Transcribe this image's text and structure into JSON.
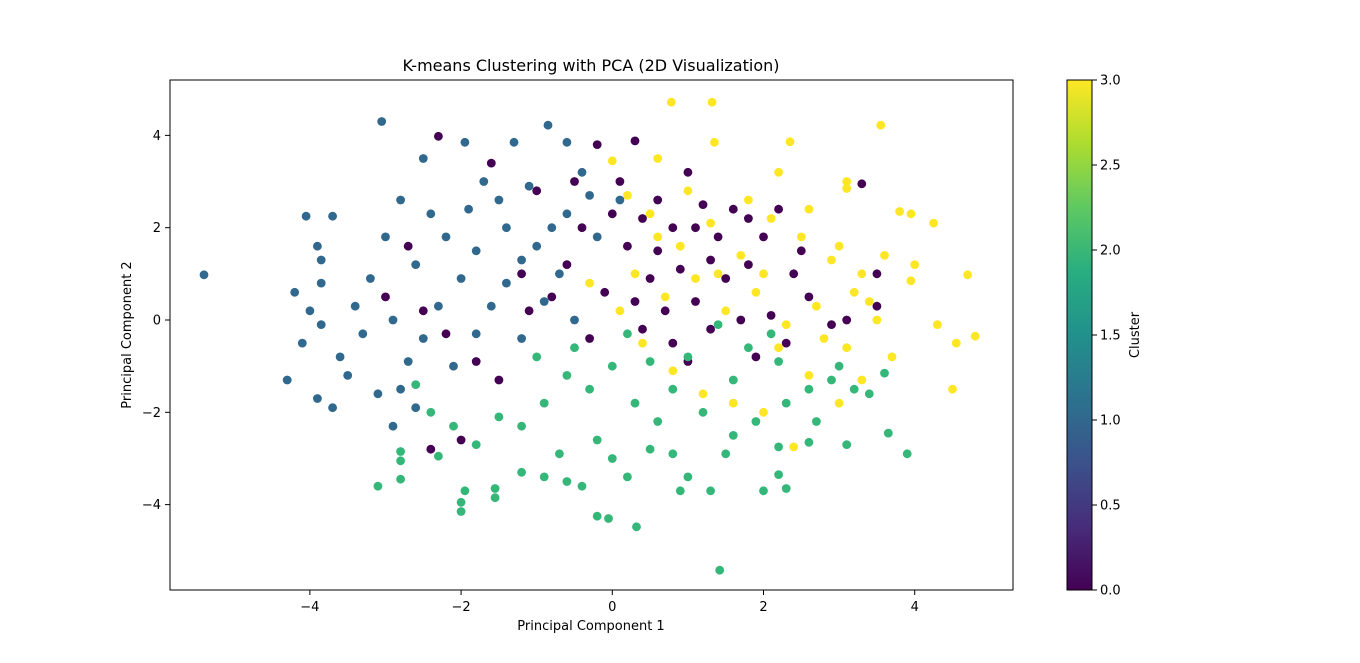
{
  "chart_data": {
    "type": "scatter",
    "title": "K-means Clustering with PCA (2D Visualization)",
    "xlabel": "Principal Component 1",
    "ylabel": "Principal Component 2",
    "xlim": [
      -5.85,
      5.3
    ],
    "ylim": [
      -5.85,
      5.2
    ],
    "xticks": [
      -4,
      -2,
      0,
      2,
      4
    ],
    "yticks": [
      -4,
      -2,
      0,
      2,
      4
    ],
    "xtick_labels": [
      "−4",
      "−2",
      "0",
      "2",
      "4"
    ],
    "ytick_labels": [
      "−4",
      "−2",
      "0",
      "2",
      "4"
    ],
    "grid": false,
    "colorbar": {
      "label": "Cluster",
      "range": [
        0.0,
        3.0
      ],
      "ticks": [
        0.0,
        0.5,
        1.0,
        1.5,
        2.0,
        2.5,
        3.0
      ],
      "tick_labels": [
        "0.0",
        "0.5",
        "1.0",
        "1.5",
        "2.0",
        "2.5",
        "3.0"
      ],
      "colormap": "viridis"
    },
    "series": [
      {
        "cluster": 0,
        "color": "#440154",
        "points": [
          [
            -2.3,
            3.98
          ],
          [
            -1.6,
            3.4
          ],
          [
            -1.0,
            2.8
          ],
          [
            -0.5,
            3.0
          ],
          [
            -0.2,
            3.8
          ],
          [
            0.1,
            3.0
          ],
          [
            0.3,
            3.88
          ],
          [
            0.4,
            2.2
          ],
          [
            0.6,
            2.6
          ],
          [
            0.8,
            2.0
          ],
          [
            1.0,
            3.2
          ],
          [
            1.2,
            2.5
          ],
          [
            1.4,
            1.8
          ],
          [
            1.6,
            2.4
          ],
          [
            1.8,
            1.2
          ],
          [
            2.0,
            1.8
          ],
          [
            2.2,
            2.4
          ],
          [
            2.4,
            1.0
          ],
          [
            2.6,
            0.5
          ],
          [
            3.3,
            2.95
          ],
          [
            3.5,
            1.0
          ],
          [
            3.5,
            0.3
          ],
          [
            -2.7,
            1.6
          ],
          [
            -3.0,
            0.5
          ],
          [
            -2.5,
            0.2
          ],
          [
            -2.2,
            -0.3
          ],
          [
            -1.8,
            -0.9
          ],
          [
            -1.5,
            -1.3
          ],
          [
            -2.0,
            -2.6
          ],
          [
            -2.4,
            -2.8
          ],
          [
            -1.2,
            1.0
          ],
          [
            -0.8,
            0.5
          ],
          [
            -0.6,
            1.2
          ],
          [
            -0.3,
            -0.4
          ],
          [
            0.2,
            1.6
          ],
          [
            0.5,
            0.9
          ],
          [
            0.7,
            0.2
          ],
          [
            0.9,
            1.1
          ],
          [
            1.1,
            0.4
          ],
          [
            1.3,
            -0.2
          ],
          [
            1.5,
            0.9
          ],
          [
            1.7,
            0.0
          ],
          [
            1.9,
            -0.8
          ],
          [
            2.1,
            0.1
          ],
          [
            2.3,
            -0.5
          ],
          [
            2.9,
            -0.1
          ],
          [
            3.1,
            0.0
          ],
          [
            0.0,
            2.3
          ],
          [
            -0.4,
            2.0
          ],
          [
            -1.1,
            0.2
          ],
          [
            0.8,
            -0.5
          ],
          [
            1.0,
            -0.9
          ],
          [
            0.4,
            -0.2
          ],
          [
            0.6,
            1.5
          ],
          [
            1.3,
            1.3
          ],
          [
            1.8,
            2.2
          ],
          [
            2.5,
            1.5
          ],
          [
            -0.1,
            0.6
          ],
          [
            0.3,
            0.4
          ],
          [
            1.1,
            2.0
          ]
        ]
      },
      {
        "cluster": 1,
        "color": "#31688e",
        "points": [
          [
            -5.4,
            0.98
          ],
          [
            -3.05,
            4.3
          ],
          [
            -0.85,
            4.22
          ],
          [
            -1.95,
            3.85
          ],
          [
            -2.5,
            3.5
          ],
          [
            -1.3,
            3.85
          ],
          [
            -0.6,
            3.85
          ],
          [
            -1.7,
            3.0
          ],
          [
            -2.8,
            2.6
          ],
          [
            -3.7,
            2.25
          ],
          [
            -4.05,
            2.25
          ],
          [
            -3.9,
            1.6
          ],
          [
            -3.85,
            1.3
          ],
          [
            -4.2,
            0.6
          ],
          [
            -3.85,
            0.8
          ],
          [
            -3.0,
            1.8
          ],
          [
            -2.6,
            1.2
          ],
          [
            -2.2,
            1.8
          ],
          [
            -1.8,
            1.5
          ],
          [
            -1.4,
            2.0
          ],
          [
            -1.0,
            1.6
          ],
          [
            -0.6,
            2.3
          ],
          [
            -0.3,
            2.7
          ],
          [
            0.1,
            2.6
          ],
          [
            -4.1,
            -0.5
          ],
          [
            -3.85,
            -0.1
          ],
          [
            -3.6,
            -0.8
          ],
          [
            -3.3,
            -0.3
          ],
          [
            -3.1,
            -1.6
          ],
          [
            -4.3,
            -1.3
          ],
          [
            -3.9,
            -1.7
          ],
          [
            -3.7,
            -1.9
          ],
          [
            -2.9,
            -2.3
          ],
          [
            -2.7,
            -0.9
          ],
          [
            -2.5,
            -0.4
          ],
          [
            -2.3,
            0.3
          ],
          [
            -2.0,
            0.9
          ],
          [
            -1.6,
            0.3
          ],
          [
            -1.2,
            -0.4
          ],
          [
            -0.9,
            0.4
          ],
          [
            -0.7,
            1.0
          ],
          [
            -2.8,
            -1.5
          ],
          [
            -2.6,
            -1.9
          ],
          [
            -3.4,
            0.3
          ],
          [
            -3.2,
            0.9
          ],
          [
            -1.9,
            2.4
          ],
          [
            -1.5,
            2.6
          ],
          [
            -1.1,
            2.9
          ],
          [
            -0.4,
            3.2
          ],
          [
            -2.4,
            2.3
          ],
          [
            -2.1,
            -1.0
          ],
          [
            -1.8,
            -0.3
          ],
          [
            -1.4,
            0.8
          ],
          [
            -0.5,
            0.0
          ],
          [
            -3.5,
            -1.2
          ],
          [
            -4.0,
            0.2
          ],
          [
            -2.9,
            0.0
          ],
          [
            -1.2,
            1.3
          ],
          [
            -0.8,
            2.0
          ],
          [
            -0.2,
            1.8
          ]
        ]
      },
      {
        "cluster": 2,
        "color": "#35b779",
        "points": [
          [
            1.42,
            -5.42
          ],
          [
            0.32,
            -4.48
          ],
          [
            -0.2,
            -4.25
          ],
          [
            -0.05,
            -4.3
          ],
          [
            -2.0,
            -4.15
          ],
          [
            -2.0,
            -3.95
          ],
          [
            -1.55,
            -3.65
          ],
          [
            -1.55,
            -3.85
          ],
          [
            -1.95,
            -3.7
          ],
          [
            -3.1,
            -3.6
          ],
          [
            -2.8,
            -3.45
          ],
          [
            -2.8,
            -2.85
          ],
          [
            -2.8,
            -3.05
          ],
          [
            -2.3,
            -2.95
          ],
          [
            -1.2,
            -3.3
          ],
          [
            -0.9,
            -3.4
          ],
          [
            -0.6,
            -3.5
          ],
          [
            -0.4,
            -3.6
          ],
          [
            0.0,
            -3.0
          ],
          [
            0.2,
            -3.4
          ],
          [
            0.5,
            -2.8
          ],
          [
            0.9,
            -3.7
          ],
          [
            1.0,
            -3.4
          ],
          [
            1.5,
            -2.9
          ],
          [
            2.0,
            -3.7
          ],
          [
            2.3,
            -3.65
          ],
          [
            2.2,
            -3.35
          ],
          [
            2.2,
            -2.75
          ],
          [
            2.6,
            -2.65
          ],
          [
            3.1,
            -2.7
          ],
          [
            3.65,
            -2.45
          ],
          [
            3.9,
            -2.9
          ],
          [
            3.2,
            -1.5
          ],
          [
            3.4,
            -1.6
          ],
          [
            3.6,
            -1.15
          ],
          [
            2.9,
            -1.3
          ],
          [
            2.6,
            -1.5
          ],
          [
            2.3,
            -1.8
          ],
          [
            1.9,
            -2.2
          ],
          [
            1.6,
            -2.5
          ],
          [
            1.2,
            -2.0
          ],
          [
            0.8,
            -1.5
          ],
          [
            0.6,
            -2.2
          ],
          [
            0.3,
            -1.8
          ],
          [
            0.0,
            -1.0
          ],
          [
            -0.3,
            -1.5
          ],
          [
            -0.6,
            -1.2
          ],
          [
            -0.9,
            -1.8
          ],
          [
            -1.2,
            -2.3
          ],
          [
            -1.5,
            -2.1
          ],
          [
            -1.8,
            -2.7
          ],
          [
            -2.1,
            -2.3
          ],
          [
            -2.4,
            -2.0
          ],
          [
            -2.6,
            -1.4
          ],
          [
            -0.5,
            -0.6
          ],
          [
            0.2,
            -0.3
          ],
          [
            0.5,
            -0.9
          ],
          [
            1.0,
            -0.8
          ],
          [
            1.4,
            -0.1
          ],
          [
            1.8,
            -0.6
          ],
          [
            2.2,
            -0.9
          ],
          [
            -1.0,
            -0.8
          ],
          [
            -0.2,
            -2.6
          ],
          [
            0.8,
            -2.9
          ],
          [
            1.3,
            -3.7
          ],
          [
            2.7,
            -2.2
          ],
          [
            3.0,
            -1.0
          ],
          [
            2.1,
            -0.3
          ],
          [
            1.6,
            -1.3
          ],
          [
            -0.7,
            -2.9
          ]
        ]
      },
      {
        "cluster": 3,
        "color": "#fde725",
        "points": [
          [
            0.78,
            4.72
          ],
          [
            1.32,
            4.72
          ],
          [
            3.55,
            4.22
          ],
          [
            1.35,
            3.85
          ],
          [
            2.35,
            3.86
          ],
          [
            0.6,
            3.5
          ],
          [
            2.2,
            3.2
          ],
          [
            3.1,
            3.0
          ],
          [
            3.1,
            2.85
          ],
          [
            3.8,
            2.35
          ],
          [
            3.95,
            2.3
          ],
          [
            4.25,
            2.1
          ],
          [
            3.0,
            1.6
          ],
          [
            3.3,
            1.0
          ],
          [
            4.0,
            1.2
          ],
          [
            3.95,
            0.85
          ],
          [
            4.7,
            0.98
          ],
          [
            3.5,
            0.0
          ],
          [
            4.3,
            -0.1
          ],
          [
            4.8,
            -0.35
          ],
          [
            4.55,
            -0.5
          ],
          [
            4.5,
            -1.5
          ],
          [
            3.7,
            -0.8
          ],
          [
            3.3,
            -1.3
          ],
          [
            3.0,
            -1.8
          ],
          [
            2.6,
            -1.2
          ],
          [
            2.2,
            -0.6
          ],
          [
            2.0,
            -2.0
          ],
          [
            2.4,
            -2.75
          ],
          [
            0.0,
            3.45
          ],
          [
            0.5,
            2.3
          ],
          [
            0.9,
            1.6
          ],
          [
            1.3,
            2.1
          ],
          [
            1.7,
            1.4
          ],
          [
            2.1,
            2.2
          ],
          [
            2.5,
            1.8
          ],
          [
            2.9,
            1.3
          ],
          [
            3.2,
            0.6
          ],
          [
            0.3,
            1.0
          ],
          [
            0.7,
            0.5
          ],
          [
            1.1,
            0.9
          ],
          [
            1.5,
            0.2
          ],
          [
            1.9,
            0.6
          ],
          [
            2.3,
            -0.1
          ],
          [
            2.7,
            0.3
          ],
          [
            3.1,
            -0.6
          ],
          [
            0.4,
            -0.5
          ],
          [
            0.8,
            -1.1
          ],
          [
            1.2,
            -1.6
          ],
          [
            1.6,
            -1.8
          ],
          [
            -0.3,
            0.8
          ],
          [
            0.1,
            0.2
          ],
          [
            0.6,
            1.8
          ],
          [
            1.4,
            1.0
          ],
          [
            1.8,
            2.6
          ],
          [
            2.6,
            2.4
          ],
          [
            3.6,
            1.4
          ],
          [
            3.4,
            0.4
          ],
          [
            2.8,
            -0.4
          ],
          [
            2.0,
            1.0
          ],
          [
            1.0,
            2.8
          ],
          [
            0.2,
            2.7
          ]
        ]
      }
    ]
  }
}
